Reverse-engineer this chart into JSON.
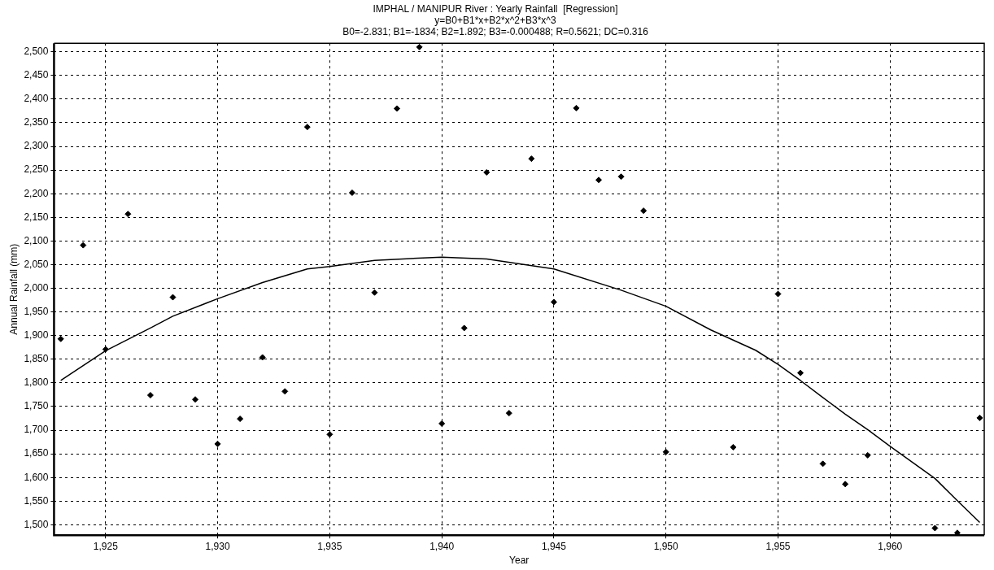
{
  "chart_data": {
    "type": "scatter",
    "title": "IMPHAL / MANIPUR River : Yearly Rainfall  [Regression]",
    "subtitle": "y=B0+B1*x+B2*x^2+B3*x^3\nB0=-2.831; B1=-1834; B2=1.892; B3=-0.000488; R=0.5621; DC=0.316",
    "xlabel": "Year",
    "ylabel": "Annual Rainfall (mm)",
    "series": [
      {
        "color": "#000000",
        "marker": "diamond",
        "x": [
          1923,
          1924,
          1925,
          1926,
          1927,
          1928,
          1929,
          1930,
          1931,
          1932,
          1933,
          1934,
          1935,
          1936,
          1937,
          1938,
          1939,
          1940,
          1941,
          1942,
          1943,
          1944,
          1945,
          1946,
          1947,
          1948,
          1949,
          1950,
          1953,
          1955,
          1956,
          1957,
          1958,
          1959,
          1962,
          1963,
          1964
        ],
        "values": [
          1893,
          2091,
          1871,
          2157,
          1774,
          1981,
          1765,
          1671,
          1724,
          1854,
          1782,
          2341,
          1691,
          2202,
          1991,
          2380,
          2510,
          1714,
          1916,
          2245,
          1736,
          2274,
          1971,
          2381,
          2229,
          2236,
          2164,
          1654,
          1664,
          1988,
          1821,
          1629,
          1586,
          1647,
          1493,
          1483,
          1726
        ]
      },
      {
        "type": "line",
        "color": "#000000",
        "marker": "none",
        "line_style": "solid",
        "x": [
          1923,
          1925,
          1927,
          1928,
          1930,
          1932,
          1934,
          1935,
          1937,
          1940,
          1942,
          1945,
          1948,
          1950,
          1952,
          1954,
          1955,
          1956,
          1957,
          1958,
          1959,
          1960,
          1962,
          1963,
          1964
        ],
        "values": [
          1805,
          1868,
          1916,
          1941,
          1978,
          2012,
          2041,
          2046,
          2059,
          2066,
          2062,
          2041,
          1996,
          1962,
          1912,
          1869,
          1839,
          1805,
          1769,
          1734,
          1701,
          1666,
          1598,
          1551,
          1505
        ]
      }
    ],
    "xlim": [
      1922.7,
      1964.2
    ],
    "xticks": [
      {
        "value": 1925,
        "label": "1,925"
      },
      {
        "value": 1930,
        "label": "1,930"
      },
      {
        "value": 1935,
        "label": "1,935"
      },
      {
        "value": 1940,
        "label": "1,940"
      },
      {
        "value": 1945,
        "label": "1,945"
      },
      {
        "value": 1950,
        "label": "1,950"
      },
      {
        "value": 1955,
        "label": "1,955"
      },
      {
        "value": 1960,
        "label": "1,960"
      }
    ],
    "ylim": [
      1478,
      2518
    ],
    "yticks": [
      {
        "value": 1500,
        "label": "1,500"
      },
      {
        "value": 1550,
        "label": "1,550"
      },
      {
        "value": 1600,
        "label": "1,600"
      },
      {
        "value": 1650,
        "label": "1,650"
      },
      {
        "value": 1700,
        "label": "1,700"
      },
      {
        "value": 1750,
        "label": "1,750"
      },
      {
        "value": 1800,
        "label": "1,800"
      },
      {
        "value": 1850,
        "label": "1,850"
      },
      {
        "value": 1900,
        "label": "1,900"
      },
      {
        "value": 1950,
        "label": "1,950"
      },
      {
        "value": 2000,
        "label": "2,000"
      },
      {
        "value": 2050,
        "label": "2,050"
      },
      {
        "value": 2100,
        "label": "2,100"
      },
      {
        "value": 2150,
        "label": "2,150"
      },
      {
        "value": 2200,
        "label": "2,200"
      },
      {
        "value": 2250,
        "label": "2,250"
      },
      {
        "value": 2300,
        "label": "2,300"
      },
      {
        "value": 2350,
        "label": "2,350"
      },
      {
        "value": 2400,
        "label": "2,400"
      },
      {
        "value": 2450,
        "label": "2,450"
      },
      {
        "value": 2500,
        "label": "2,500"
      }
    ],
    "grid": true,
    "legend": false
  }
}
